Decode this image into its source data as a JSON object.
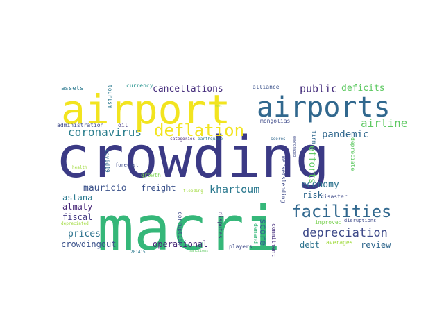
{
  "wordcloud": {
    "words": [
      {
        "text": "crowding",
        "color": "#3b3a85"
      },
      {
        "text": "macri",
        "color": "#35b779"
      },
      {
        "text": "airport",
        "color": "#f2e41f"
      },
      {
        "text": "airports",
        "color": "#31688e"
      },
      {
        "text": "deflation",
        "color": "#f2e41f"
      },
      {
        "text": "facilities",
        "color": "#31688e"
      },
      {
        "text": "coronavirus",
        "color": "#2c7f8e"
      },
      {
        "text": "airline",
        "color": "#5ec962"
      },
      {
        "text": "depreciation",
        "color": "#3e4a89"
      },
      {
        "text": "pandemic",
        "color": "#31688e"
      },
      {
        "text": "khartoum",
        "color": "#2a788e"
      },
      {
        "text": "cancellations",
        "color": "#472f7d"
      },
      {
        "text": "public",
        "color": "#472f7d"
      },
      {
        "text": "deficits",
        "color": "#5ec962"
      },
      {
        "text": "mauricio",
        "color": "#3b528b"
      },
      {
        "text": "freight",
        "color": "#3b528b"
      },
      {
        "text": "economy",
        "color": "#2c728e"
      },
      {
        "text": "efforts",
        "color": "#5ec962"
      },
      {
        "text": "risk",
        "color": "#31688e"
      },
      {
        "text": "astana",
        "color": "#2a788e"
      },
      {
        "text": "almaty",
        "color": "#482878"
      },
      {
        "text": "fiscal",
        "color": "#443a83"
      },
      {
        "text": "prices",
        "color": "#2c728e"
      },
      {
        "text": "crowdingout",
        "color": "#3b528b"
      },
      {
        "text": "operational",
        "color": "#482878"
      },
      {
        "text": "score",
        "color": "#31688e"
      },
      {
        "text": "debt",
        "color": "#2c728e"
      },
      {
        "text": "review",
        "color": "#31688e"
      },
      {
        "text": "assets",
        "color": "#2a788e"
      },
      {
        "text": "currency",
        "color": "#21918c"
      },
      {
        "text": "alliance",
        "color": "#3b528b"
      },
      {
        "text": "tourism",
        "color": "#2a788e"
      },
      {
        "text": "administration",
        "color": "#3e4a89"
      },
      {
        "text": "oil",
        "color": "#443983"
      },
      {
        "text": "mongolias",
        "color": "#3e4a89"
      },
      {
        "text": "categories",
        "color": "#482878"
      },
      {
        "text": "earthquake",
        "color": "#2a788e"
      },
      {
        "text": "scores",
        "color": "#31688e"
      },
      {
        "text": "firm",
        "color": "#31688e"
      },
      {
        "text": "covid19",
        "color": "#31688e"
      },
      {
        "text": "forecast",
        "color": "#3e4a89"
      },
      {
        "text": "health",
        "color": "#9fda3a"
      },
      {
        "text": "growth",
        "color": "#7ad151"
      },
      {
        "text": "marketslending",
        "color": "#3e4a89"
      },
      {
        "text": "downgraded",
        "color": "#3e4a89"
      },
      {
        "text": "depreciate",
        "color": "#5ec962"
      },
      {
        "text": "flooding",
        "color": "#9fda3a"
      },
      {
        "text": "disaster",
        "color": "#3e4a89"
      },
      {
        "text": "corruption",
        "color": "#3e4a89"
      },
      {
        "text": "disputes",
        "color": "#472f7d"
      },
      {
        "text": "demand",
        "color": "#35b779"
      },
      {
        "text": "commitment",
        "color": "#472f7d"
      },
      {
        "text": "improved",
        "color": "#7ad151"
      },
      {
        "text": "disruptions",
        "color": "#3e4a89"
      },
      {
        "text": "depreciated",
        "color": "#9fda3a"
      },
      {
        "text": "201415",
        "color": "#2a788e"
      },
      {
        "text": "sanctions",
        "color": "#5ec962"
      },
      {
        "text": "players",
        "color": "#3e4a89"
      },
      {
        "text": "averages",
        "color": "#9fda3a"
      },
      {
        "text": "sees",
        "color": "#9fda3a"
      }
    ]
  }
}
